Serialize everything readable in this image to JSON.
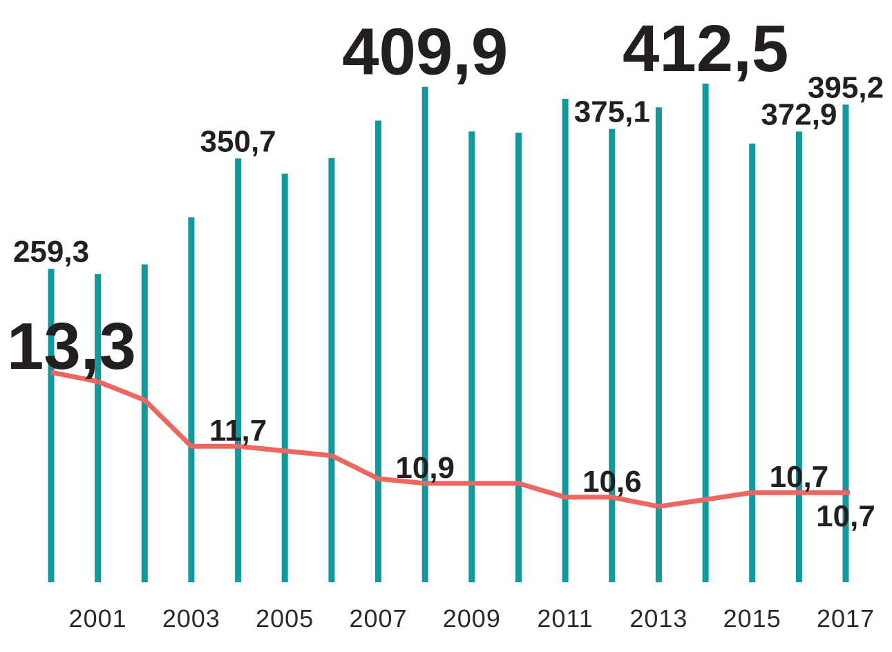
{
  "chart_data": {
    "type": "bar",
    "categories": [
      "2000",
      "2001",
      "2002",
      "2003",
      "2004",
      "2005",
      "2006",
      "2007",
      "2008",
      "2009",
      "2010",
      "2011",
      "2012",
      "2013",
      "2014",
      "2015",
      "2016",
      "2017"
    ],
    "x_tick_labels": [
      "2001",
      "2003",
      "2005",
      "2007",
      "2009",
      "2011",
      "2013",
      "2015",
      "2017"
    ],
    "grid": false,
    "legend": false,
    "title": "",
    "xlabel": "",
    "ylabel": "",
    "ylim_bars": [
      0,
      482
    ],
    "ylim_line": [
      10,
      14
    ],
    "decimal_separator": ",",
    "series": [
      {
        "name": "teal-bars",
        "type": "bar",
        "color": "#12999E",
        "values": [
          259.3,
          255,
          263,
          302,
          350.7,
          338,
          351,
          382,
          409.9,
          373,
          372,
          400,
          375.1,
          393,
          412.5,
          363,
          372.9,
          395.2
        ],
        "value_labels": [
          {
            "year": "2000",
            "text": "259,3",
            "size": "small"
          },
          {
            "year": "2004",
            "text": "350,7",
            "size": "small"
          },
          {
            "year": "2008",
            "text": "409,9",
            "size": "large"
          },
          {
            "year": "2012",
            "text": "375,1",
            "size": "small"
          },
          {
            "year": "2014",
            "text": "412,5",
            "size": "large"
          },
          {
            "year": "2016",
            "text": "372,9",
            "size": "small"
          },
          {
            "year": "2017",
            "text": "395,2",
            "size": "small"
          }
        ]
      },
      {
        "name": "red-line",
        "type": "line",
        "color": "#ED665F",
        "values": [
          13.3,
          13.1,
          12.7,
          11.7,
          11.7,
          11.6,
          11.5,
          11.0,
          10.9,
          10.9,
          10.9,
          10.6,
          10.6,
          10.4,
          10.55,
          10.7,
          10.7,
          10.7
        ],
        "value_labels": [
          {
            "year": "2000",
            "text": "13,3",
            "size": "xlarge",
            "placement": "above"
          },
          {
            "year": "2004",
            "text": "11,7",
            "size": "medium",
            "placement": "above"
          },
          {
            "year": "2008",
            "text": "10,9",
            "size": "medium",
            "placement": "above"
          },
          {
            "year": "2012",
            "text": "10,6",
            "size": "medium",
            "placement": "above"
          },
          {
            "year": "2016",
            "text": "10,7",
            "size": "medium",
            "placement": "above"
          },
          {
            "year": "2017",
            "text": "10,7",
            "size": "medium",
            "placement": "below"
          }
        ]
      }
    ]
  },
  "colors": {
    "background": "#FFFFFF",
    "bar": "#12999E",
    "line": "#ED665F",
    "value_text": "#231F20",
    "tick_text": "#2B2A29"
  }
}
